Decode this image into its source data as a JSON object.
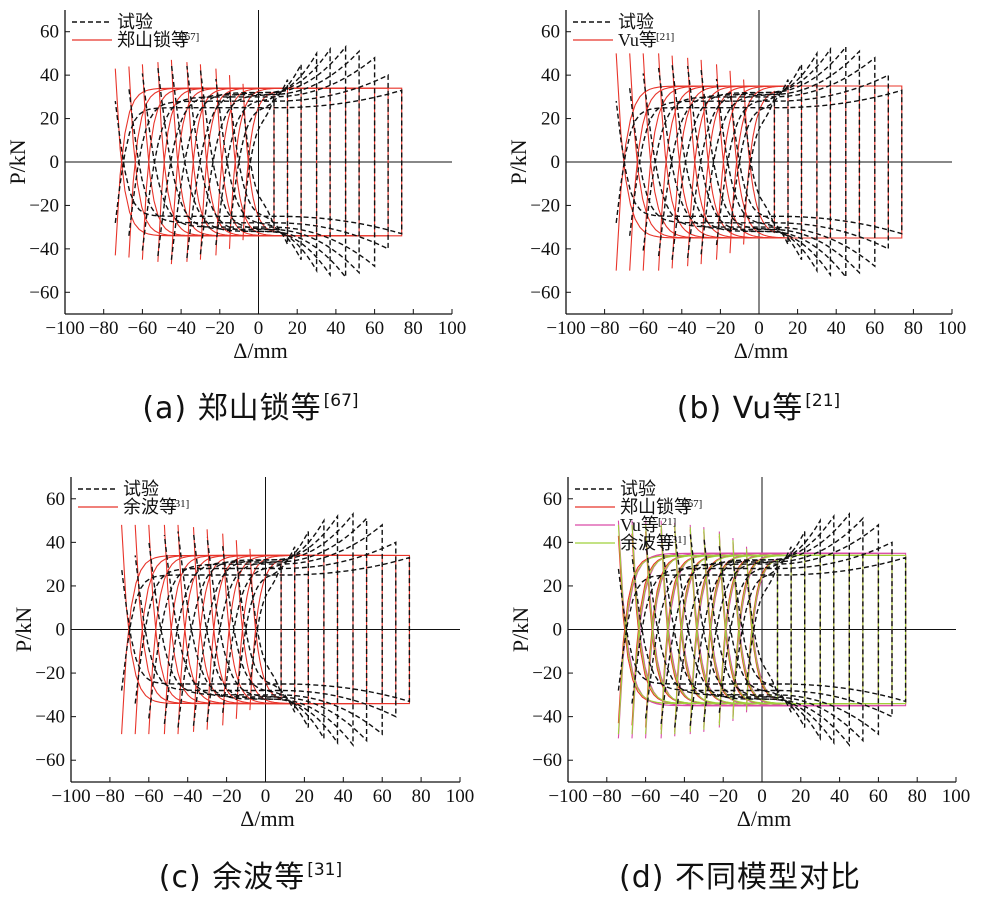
{
  "figure": {
    "colors": {
      "test": "#111111",
      "zheng": "#e8342a",
      "vu": "#e0368f",
      "yu": "#e8342a",
      "yu_d": "#9fd13a",
      "vu_d": "#d94aa8",
      "axes": "#111111"
    }
  },
  "chart_data": [
    {
      "id": "a",
      "type": "line",
      "caption": "(a) 郑山锁等",
      "caption_ref": "[67]",
      "xlabel": "Δ/mm",
      "ylabel": "P/kN",
      "xlim": [
        -100,
        100
      ],
      "ylim": [
        -70,
        70
      ],
      "xticks": [
        -100,
        -80,
        -60,
        -40,
        -20,
        0,
        20,
        40,
        60,
        80,
        100
      ],
      "yticks": [
        -60,
        -40,
        -20,
        0,
        20,
        40,
        60
      ],
      "legend": [
        {
          "label": "试验",
          "ref": "",
          "style": "dashed",
          "color": "#111111"
        },
        {
          "label": "郑山锁等",
          "ref": "[67]",
          "style": "solid",
          "color": "#e8342a"
        }
      ],
      "series": [
        {
          "name": "试验",
          "style": "dashed",
          "color": "#111111",
          "amplitudes": [
            8,
            15,
            22,
            30,
            37,
            45,
            52,
            60,
            67,
            74
          ],
          "peak_load": [
            30,
            38,
            45,
            50,
            52,
            53,
            51,
            48,
            40,
            33
          ],
          "yield_load": [
            22,
            26,
            29,
            31,
            32,
            32,
            31,
            30,
            28,
            25
          ],
          "k_elastic": 7.5
        },
        {
          "name": "郑山锁等",
          "style": "solid",
          "color": "#e8342a",
          "amplitudes": [
            8,
            15,
            22,
            30,
            37,
            45,
            52,
            60,
            67,
            74
          ],
          "peak_load": [
            36,
            40,
            43,
            45,
            46,
            47,
            46,
            45,
            44,
            43
          ],
          "yield_load": [
            33,
            34,
            34,
            34,
            34,
            34,
            34,
            34,
            34,
            34
          ],
          "k_elastic": 10
        }
      ]
    },
    {
      "id": "b",
      "type": "line",
      "caption": "(b) Vu等",
      "caption_ref": "[21]",
      "xlabel": "Δ/mm",
      "ylabel": "P/kN",
      "xlim": [
        -100,
        100
      ],
      "ylim": [
        -70,
        70
      ],
      "xticks": [
        -100,
        -80,
        -60,
        -40,
        -20,
        0,
        20,
        40,
        60,
        80,
        100
      ],
      "yticks": [
        -60,
        -40,
        -20,
        0,
        20,
        40,
        60
      ],
      "legend": [
        {
          "label": "试验",
          "ref": "",
          "style": "dashed",
          "color": "#111111"
        },
        {
          "label": "Vu等",
          "ref": "[21]",
          "style": "solid",
          "color": "#e8342a"
        }
      ],
      "series": [
        {
          "name": "试验",
          "style": "dashed",
          "color": "#111111",
          "amplitudes": [
            8,
            15,
            22,
            30,
            37,
            45,
            52,
            60,
            67,
            74
          ],
          "peak_load": [
            30,
            38,
            45,
            50,
            52,
            53,
            51,
            48,
            40,
            33
          ],
          "yield_load": [
            22,
            26,
            29,
            31,
            32,
            32,
            31,
            30,
            28,
            25
          ],
          "k_elastic": 7.5
        },
        {
          "name": "Vu等",
          "style": "solid",
          "color": "#e8342a",
          "amplitudes": [
            8,
            15,
            22,
            30,
            37,
            45,
            52,
            60,
            67,
            74
          ],
          "peak_load": [
            38,
            42,
            45,
            47,
            48,
            49,
            50,
            50,
            50,
            50
          ],
          "yield_load": [
            34,
            35,
            35,
            35,
            35,
            35,
            35,
            35,
            35,
            35
          ],
          "k_elastic": 9
        }
      ]
    },
    {
      "id": "c",
      "type": "line",
      "caption": "(c) 余波等",
      "caption_ref": "[31]",
      "xlabel": "Δ/mm",
      "ylabel": "P/kN",
      "xlim": [
        -100,
        100
      ],
      "ylim": [
        -70,
        70
      ],
      "xticks": [
        -100,
        -80,
        -60,
        -40,
        -20,
        0,
        20,
        40,
        60,
        80,
        100
      ],
      "yticks": [
        -60,
        -40,
        -20,
        0,
        20,
        40,
        60
      ],
      "legend": [
        {
          "label": "试验",
          "ref": "",
          "style": "dashed",
          "color": "#111111"
        },
        {
          "label": "余波等",
          "ref": "[31]",
          "style": "solid",
          "color": "#e8342a"
        }
      ],
      "series": [
        {
          "name": "试验",
          "style": "dashed",
          "color": "#111111",
          "amplitudes": [
            8,
            15,
            22,
            30,
            37,
            45,
            52,
            60,
            67,
            74
          ],
          "peak_load": [
            30,
            38,
            45,
            50,
            52,
            53,
            51,
            48,
            40,
            33
          ],
          "yield_load": [
            22,
            26,
            29,
            31,
            32,
            32,
            31,
            30,
            28,
            25
          ],
          "k_elastic": 7.5
        },
        {
          "name": "余波等",
          "style": "solid",
          "color": "#e8342a",
          "amplitudes": [
            8,
            15,
            22,
            30,
            37,
            45,
            52,
            60,
            67,
            74
          ],
          "peak_load": [
            37,
            41,
            44,
            46,
            47,
            48,
            48,
            48,
            48,
            48
          ],
          "yield_load": [
            33,
            34,
            34,
            34,
            34,
            34,
            34,
            34,
            34,
            34
          ],
          "k_elastic": 9.5
        }
      ]
    },
    {
      "id": "d",
      "type": "line",
      "caption": "(d) 不同模型对比",
      "caption_ref": "",
      "xlabel": "Δ/mm",
      "ylabel": "P/kN",
      "xlim": [
        -100,
        100
      ],
      "ylim": [
        -70,
        70
      ],
      "xticks": [
        -100,
        -80,
        -60,
        -40,
        -20,
        0,
        20,
        40,
        60,
        80,
        100
      ],
      "yticks": [
        -60,
        -40,
        -20,
        0,
        20,
        40,
        60
      ],
      "legend": [
        {
          "label": "试验",
          "ref": "",
          "style": "dashed",
          "color": "#111111"
        },
        {
          "label": "郑山锁等",
          "ref": "[67]",
          "style": "solid",
          "color": "#e8342a"
        },
        {
          "label": "Vu等",
          "ref": "[21]",
          "style": "solid",
          "color": "#d94aa8"
        },
        {
          "label": "余波等",
          "ref": "[31]",
          "style": "solid",
          "color": "#9fd13a"
        }
      ],
      "series": [
        {
          "name": "试验",
          "style": "dashed",
          "color": "#111111",
          "amplitudes": [
            8,
            15,
            22,
            30,
            37,
            45,
            52,
            60,
            67,
            74
          ],
          "peak_load": [
            30,
            38,
            45,
            50,
            52,
            53,
            51,
            48,
            40,
            33
          ],
          "yield_load": [
            22,
            26,
            29,
            31,
            32,
            32,
            31,
            30,
            28,
            25
          ],
          "k_elastic": 7.5
        },
        {
          "name": "郑山锁等",
          "style": "solid",
          "color": "#e8342a",
          "amplitudes": [
            8,
            15,
            22,
            30,
            37,
            45,
            52,
            60,
            67,
            74
          ],
          "peak_load": [
            36,
            40,
            43,
            45,
            46,
            47,
            46,
            45,
            44,
            43
          ],
          "yield_load": [
            33,
            34,
            34,
            34,
            34,
            34,
            34,
            34,
            34,
            34
          ],
          "k_elastic": 10
        },
        {
          "name": "Vu等",
          "style": "solid",
          "color": "#d94aa8",
          "amplitudes": [
            8,
            15,
            22,
            30,
            37,
            45,
            52,
            60,
            67,
            74
          ],
          "peak_load": [
            38,
            42,
            45,
            47,
            48,
            49,
            50,
            50,
            50,
            50
          ],
          "yield_load": [
            34,
            35,
            35,
            35,
            35,
            35,
            35,
            35,
            35,
            35
          ],
          "k_elastic": 9
        },
        {
          "name": "余波等",
          "style": "solid",
          "color": "#9fd13a",
          "amplitudes": [
            8,
            15,
            22,
            30,
            37,
            45,
            52,
            60,
            67,
            74
          ],
          "peak_load": [
            37,
            41,
            44,
            46,
            47,
            48,
            48,
            48,
            48,
            48
          ],
          "yield_load": [
            33,
            34,
            34,
            34,
            34,
            34,
            34,
            34,
            34,
            34
          ],
          "k_elastic": 9.5
        }
      ]
    }
  ]
}
